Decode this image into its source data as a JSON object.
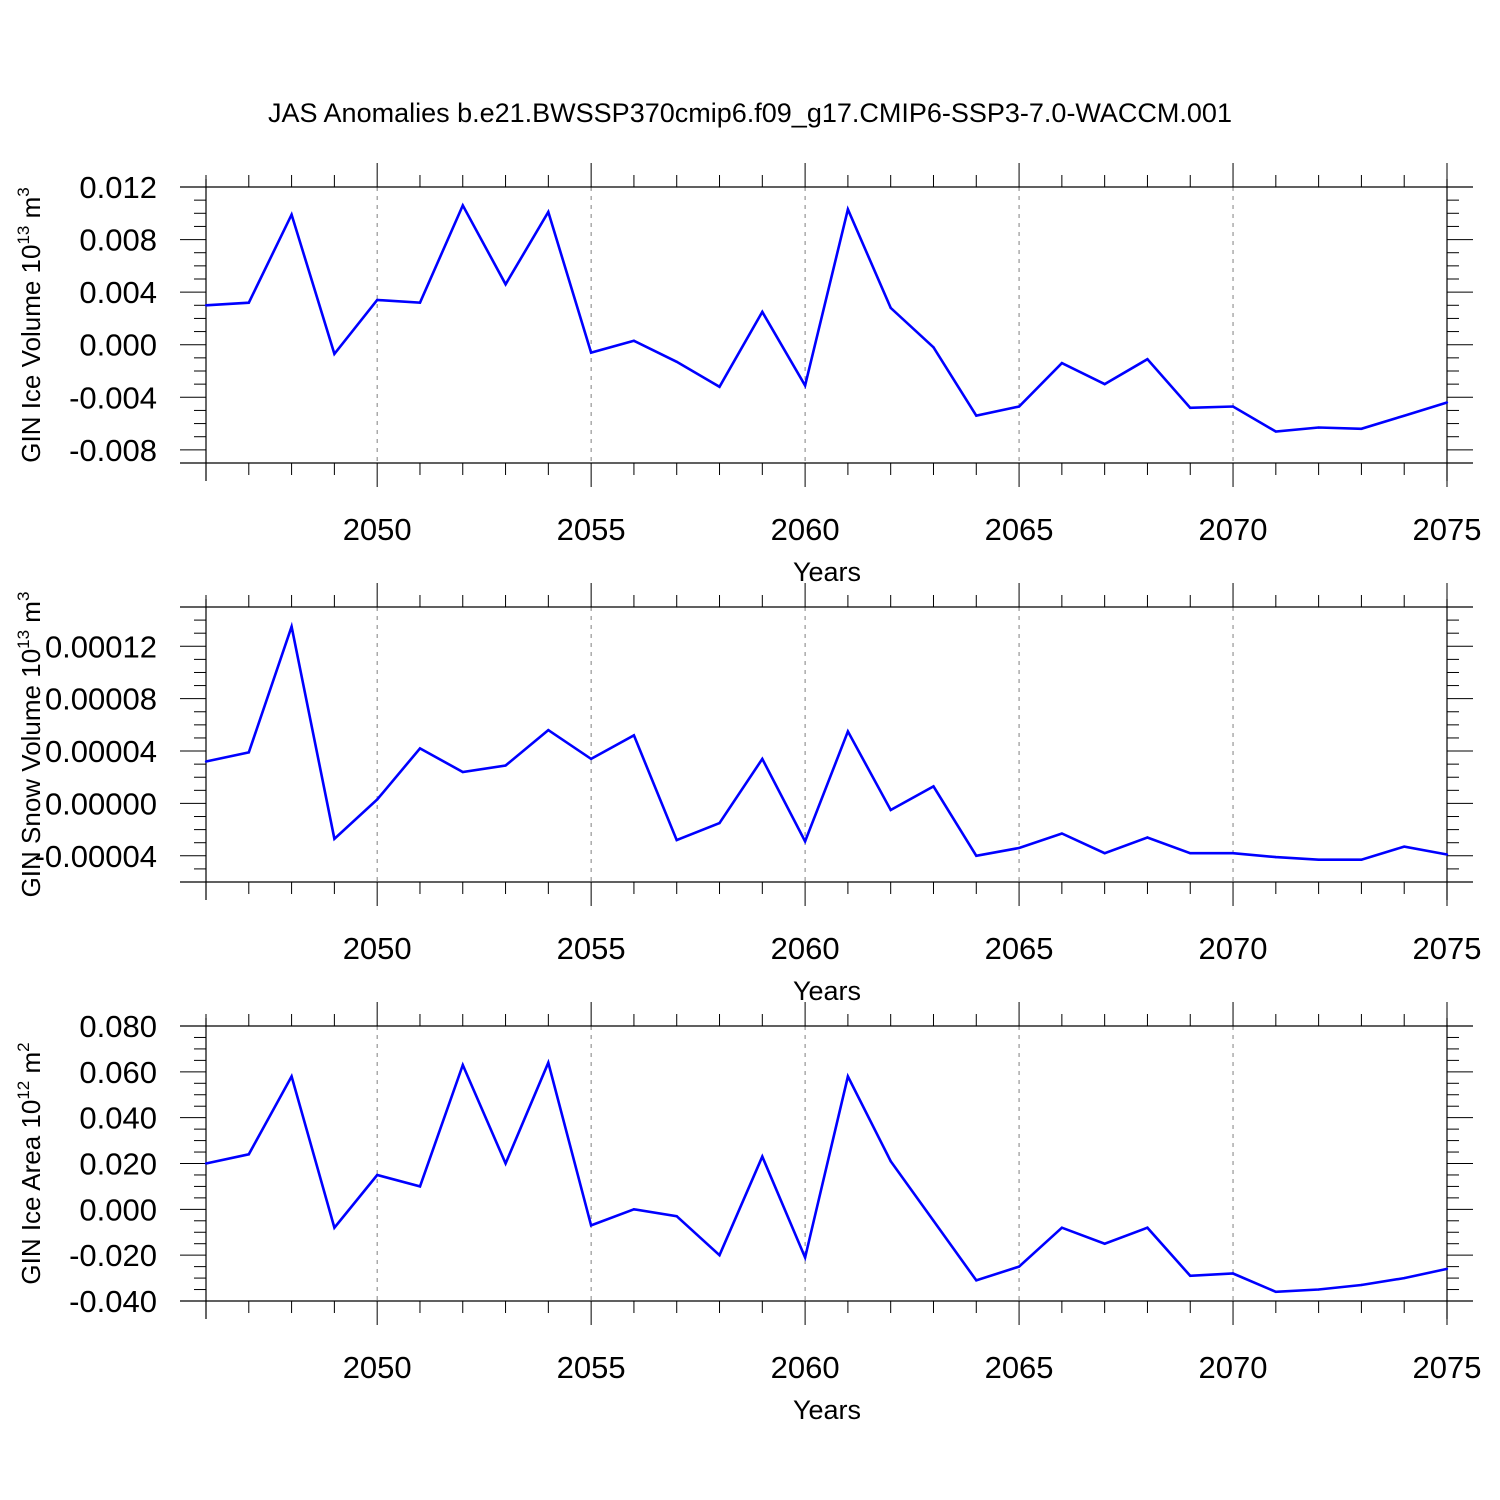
{
  "title": "JAS Anomalies b.e21.BWSSP370cmip6.f09_g17.CMIP6-SSP3-7.0-WACCM.001",
  "colors": {
    "line": "#0000ff",
    "axis": "#000000",
    "grid": "#808080"
  },
  "chart_data": [
    {
      "type": "line",
      "ylabel_main": "GIN Ice Volume 10",
      "ylabel_sup": "13",
      "ylabel_unit": " m",
      "ylabel_unit_sup": "3",
      "xlabel": "Years",
      "xlim": [
        2046,
        2075
      ],
      "ylim": [
        -0.009,
        0.012
      ],
      "yticks": [
        -0.008,
        -0.004,
        0.0,
        0.004,
        0.008,
        0.012
      ],
      "ytick_labels": [
        "-0.008",
        "-0.004",
        "0.000",
        "0.004",
        "0.008",
        "0.012"
      ],
      "xticks": [
        2050,
        2055,
        2060,
        2065,
        2070,
        2075
      ],
      "xtick_labels": [
        "2050",
        "2055",
        "2060",
        "2065",
        "2070",
        "2075"
      ],
      "grid": "vertical dashed at major x ticks",
      "x": [
        2046,
        2047,
        2048,
        2049,
        2050,
        2051,
        2052,
        2053,
        2054,
        2055,
        2056,
        2057,
        2058,
        2059,
        2060,
        2061,
        2062,
        2063,
        2064,
        2065,
        2066,
        2067,
        2068,
        2069,
        2070,
        2071,
        2072,
        2073,
        2074,
        2075
      ],
      "values": [
        0.003,
        0.0032,
        0.0099,
        -0.0007,
        0.0034,
        0.0032,
        0.0106,
        0.0046,
        0.0101,
        -0.0006,
        0.0003,
        -0.0013,
        -0.0032,
        0.0025,
        -0.0031,
        0.0103,
        0.0028,
        -0.0002,
        -0.0054,
        -0.0047,
        -0.0014,
        -0.003,
        -0.0011,
        -0.0048,
        -0.0047,
        -0.0066,
        -0.0063,
        -0.0064,
        -0.0054,
        -0.0044
      ]
    },
    {
      "type": "line",
      "ylabel_main": "GIN Snow Volume 10",
      "ylabel_sup": "13",
      "ylabel_unit": " m",
      "ylabel_unit_sup": "3",
      "xlabel": "Years",
      "xlim": [
        2046,
        2075
      ],
      "ylim": [
        -6e-05,
        0.00015
      ],
      "yticks": [
        -4e-05,
        0.0,
        4e-05,
        8e-05,
        0.00012
      ],
      "ytick_labels": [
        "-0.00004",
        "0.00000",
        "0.00004",
        "0.00008",
        "0.00012"
      ],
      "xticks": [
        2050,
        2055,
        2060,
        2065,
        2070,
        2075
      ],
      "xtick_labels": [
        "2050",
        "2055",
        "2060",
        "2065",
        "2070",
        "2075"
      ],
      "grid": "vertical dashed at major x ticks",
      "x": [
        2046,
        2047,
        2048,
        2049,
        2050,
        2051,
        2052,
        2053,
        2054,
        2055,
        2056,
        2057,
        2058,
        2059,
        2060,
        2061,
        2062,
        2063,
        2064,
        2065,
        2066,
        2067,
        2068,
        2069,
        2070,
        2071,
        2072,
        2073,
        2074,
        2075
      ],
      "values": [
        3.2e-05,
        3.9e-05,
        0.000135,
        -2.7e-05,
        3e-06,
        4.2e-05,
        2.4e-05,
        2.9e-05,
        5.6e-05,
        3.4e-05,
        5.2e-05,
        -2.8e-05,
        -1.5e-05,
        3.4e-05,
        -2.9e-05,
        5.5e-05,
        -5e-06,
        1.3e-05,
        -4e-05,
        -3.4e-05,
        -2.3e-05,
        -3.8e-05,
        -2.6e-05,
        -3.8e-05,
        -3.8e-05,
        -4.1e-05,
        -4.3e-05,
        -4.3e-05,
        -3.3e-05,
        -3.9e-05
      ]
    },
    {
      "type": "line",
      "ylabel_main": "GIN Ice Area 10",
      "ylabel_sup": "12",
      "ylabel_unit": " m",
      "ylabel_unit_sup": "2",
      "xlabel": "Years",
      "xlim": [
        2046,
        2075
      ],
      "ylim": [
        -0.04,
        0.08
      ],
      "yticks": [
        -0.04,
        -0.02,
        0.0,
        0.02,
        0.04,
        0.06,
        0.08
      ],
      "ytick_labels": [
        "-0.040",
        "-0.020",
        "0.000",
        "0.020",
        "0.040",
        "0.060",
        "0.080"
      ],
      "xticks": [
        2050,
        2055,
        2060,
        2065,
        2070,
        2075
      ],
      "xtick_labels": [
        "2050",
        "2055",
        "2060",
        "2065",
        "2070",
        "2075"
      ],
      "grid": "vertical dashed at major x ticks",
      "x": [
        2046,
        2047,
        2048,
        2049,
        2050,
        2051,
        2052,
        2053,
        2054,
        2055,
        2056,
        2057,
        2058,
        2059,
        2060,
        2061,
        2062,
        2063,
        2064,
        2065,
        2066,
        2067,
        2068,
        2069,
        2070,
        2071,
        2072,
        2073,
        2074,
        2075
      ],
      "values": [
        0.02,
        0.024,
        0.058,
        -0.008,
        0.015,
        0.01,
        0.063,
        0.02,
        0.064,
        -0.007,
        0.0,
        -0.003,
        -0.02,
        0.023,
        -0.021,
        0.058,
        0.021,
        -0.005,
        -0.031,
        -0.025,
        -0.008,
        -0.015,
        -0.008,
        -0.029,
        -0.028,
        -0.036,
        -0.035,
        -0.033,
        -0.03,
        -0.026
      ]
    }
  ]
}
